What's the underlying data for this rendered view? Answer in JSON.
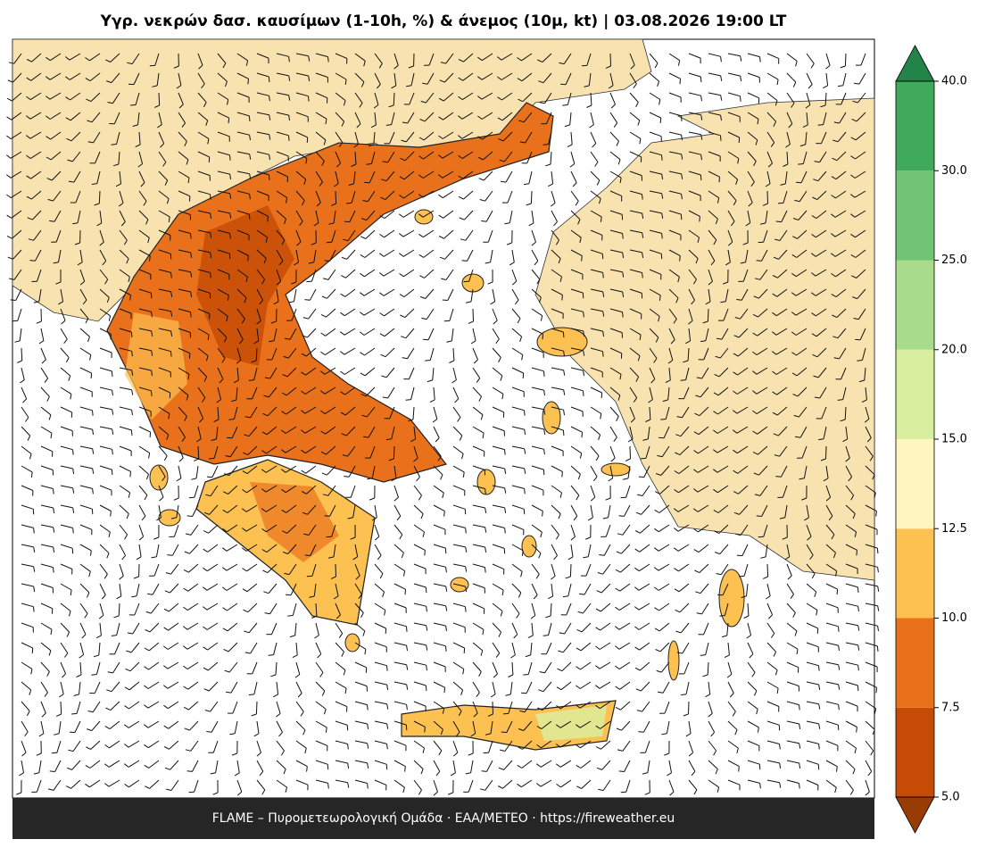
{
  "title": "Υγρ. νεκρών δασ. καυσίμων (1-10h, %) & άνεμος (10μ, kt)  |  03.08.2026 19:00 LT",
  "footer": "FLAME – Πυρομετεωρολογική Ομάδα · ΕΑΑ/METEO · https://fireweather.eu",
  "colorbar": {
    "ticks": [
      {
        "value": 5,
        "label": "5.0"
      },
      {
        "value": 7.5,
        "label": "7.5"
      },
      {
        "value": 10,
        "label": "10.0"
      },
      {
        "value": 12.5,
        "label": "12.5"
      },
      {
        "value": 15,
        "label": "15.0"
      },
      {
        "value": 20,
        "label": "20.0"
      },
      {
        "value": 25,
        "label": "25.0"
      },
      {
        "value": 30,
        "label": "30.0"
      },
      {
        "value": 40,
        "label": "40.0"
      }
    ],
    "colors": [
      "#c64b05",
      "#e9711c",
      "#fdc151",
      "#fff6bf",
      "#d9efa0",
      "#a8dc8b",
      "#72c475",
      "#40aa5c"
    ],
    "under_color": "#983c06",
    "over_color": "#23844a"
  }
}
